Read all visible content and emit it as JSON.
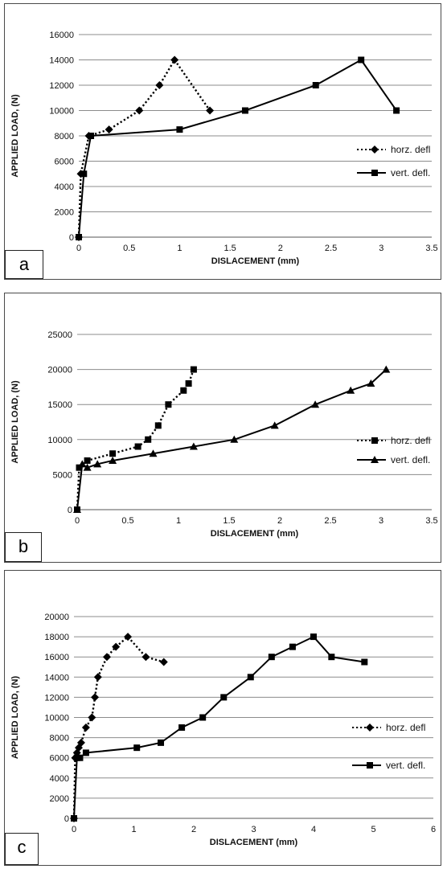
{
  "chart_data": [
    {
      "panel_label": "a",
      "type": "line",
      "xlabel": "DISLACEMENT (mm)",
      "ylabel": "APPLIED LOAD, (N)",
      "xlim": [
        0,
        3.5
      ],
      "ylim": [
        0,
        16000
      ],
      "x_ticks": [
        "0",
        "0.5",
        "1",
        "1.5",
        "2",
        "2.5",
        "3",
        "3.5"
      ],
      "y_ticks": [
        "0",
        "2000",
        "4000",
        "6000",
        "8000",
        "10000",
        "12000",
        "14000",
        "16000"
      ],
      "grid": "horizontal",
      "legend_position": "right",
      "series": [
        {
          "name": "horz. defl",
          "marker": "diamond",
          "style": "dotted",
          "x": [
            0,
            0.02,
            0.1,
            0.3,
            0.6,
            0.8,
            0.95,
            1.3
          ],
          "y": [
            0,
            5000,
            8000,
            8500,
            10000,
            12000,
            14000,
            10000
          ]
        },
        {
          "name": "vert. defl.",
          "marker": "square",
          "style": "solid",
          "x": [
            0,
            0.05,
            0.12,
            1.0,
            1.65,
            2.35,
            2.8,
            3.15
          ],
          "y": [
            0,
            5000,
            8000,
            8500,
            10000,
            12000,
            14000,
            10000
          ]
        }
      ]
    },
    {
      "panel_label": "b",
      "type": "line",
      "xlabel": "DISLACEMENT (mm)",
      "ylabel": "APPLIED LOAD, (N)",
      "xlim": [
        0,
        3.5
      ],
      "ylim": [
        0,
        25000
      ],
      "x_ticks": [
        "0",
        "0.5",
        "1",
        "1.5",
        "2",
        "2.5",
        "3",
        "3.5"
      ],
      "y_ticks": [
        "0",
        "5000",
        "10000",
        "15000",
        "20000",
        "25000"
      ],
      "grid": "horizontal",
      "legend_position": "right",
      "series": [
        {
          "name": "horz. defl",
          "marker": "square",
          "style": "dotted",
          "x": [
            0,
            0.02,
            0.1,
            0.35,
            0.6,
            0.7,
            0.8,
            0.9,
            1.05,
            1.1,
            1.15
          ],
          "y": [
            0,
            6000,
            7000,
            8000,
            9000,
            10000,
            12000,
            15000,
            17000,
            18000,
            20000
          ]
        },
        {
          "name": "vert. defl.",
          "marker": "triangle",
          "style": "solid",
          "x": [
            0,
            0.05,
            0.1,
            0.2,
            0.35,
            0.75,
            1.15,
            1.55,
            1.95,
            2.35,
            2.7,
            2.9,
            3.05
          ],
          "y": [
            0,
            6500,
            6000,
            6500,
            7000,
            8000,
            9000,
            10000,
            12000,
            15000,
            17000,
            18000,
            20000
          ]
        }
      ]
    },
    {
      "panel_label": "c",
      "type": "line",
      "xlabel": "DISLACEMENT (mm)",
      "ylabel": "APPLIED LOAD, (N)",
      "xlim": [
        0,
        6
      ],
      "ylim": [
        0,
        20000
      ],
      "x_ticks": [
        "0",
        "1",
        "2",
        "3",
        "4",
        "5",
        "6"
      ],
      "y_ticks": [
        "0",
        "2000",
        "4000",
        "6000",
        "8000",
        "10000",
        "12000",
        "14000",
        "16000",
        "18000",
        "20000"
      ],
      "grid": "horizontal",
      "legend_position": "right",
      "series": [
        {
          "name": "horz. defl",
          "marker": "diamond",
          "style": "dotted",
          "x": [
            0,
            0.02,
            0.05,
            0.08,
            0.12,
            0.2,
            0.3,
            0.35,
            0.4,
            0.55,
            0.7,
            0.9,
            1.2,
            1.5
          ],
          "y": [
            0,
            6000,
            6500,
            7000,
            7500,
            9000,
            10000,
            12000,
            14000,
            16000,
            17000,
            18000,
            16000,
            15500
          ]
        },
        {
          "name": "vert. defl.",
          "marker": "square",
          "style": "solid",
          "x": [
            0,
            0.05,
            0.1,
            0.2,
            1.05,
            1.45,
            1.8,
            2.15,
            2.5,
            2.95,
            3.3,
            3.65,
            4.0,
            4.3,
            4.85
          ],
          "y": [
            0,
            6000,
            6000,
            6500,
            7000,
            7500,
            9000,
            10000,
            12000,
            14000,
            16000,
            17000,
            18000,
            16000,
            15500
          ]
        }
      ]
    }
  ]
}
